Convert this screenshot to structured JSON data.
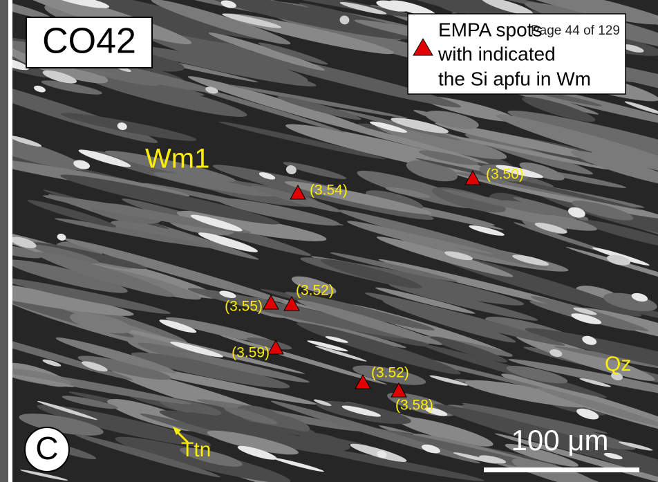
{
  "sample": "CO42",
  "panel_label": "C",
  "page_number": "Page 44 of 129",
  "legend": {
    "lines": [
      "EMPA spots",
      "with indicated",
      "the Si apfu in Wm"
    ]
  },
  "minerals": [
    "Wm1",
    "Qz",
    "Ttn"
  ],
  "spots": [
    {
      "label": "(3.54)"
    },
    {
      "label": "(3.50)"
    },
    {
      "label": "(3.55)"
    },
    {
      "label": "(3.52)"
    },
    {
      "label": "(3.59)"
    },
    {
      "label": "(3.52)"
    },
    {
      "label": "(3.58)"
    }
  ],
  "scale_bar": "100 μm"
}
